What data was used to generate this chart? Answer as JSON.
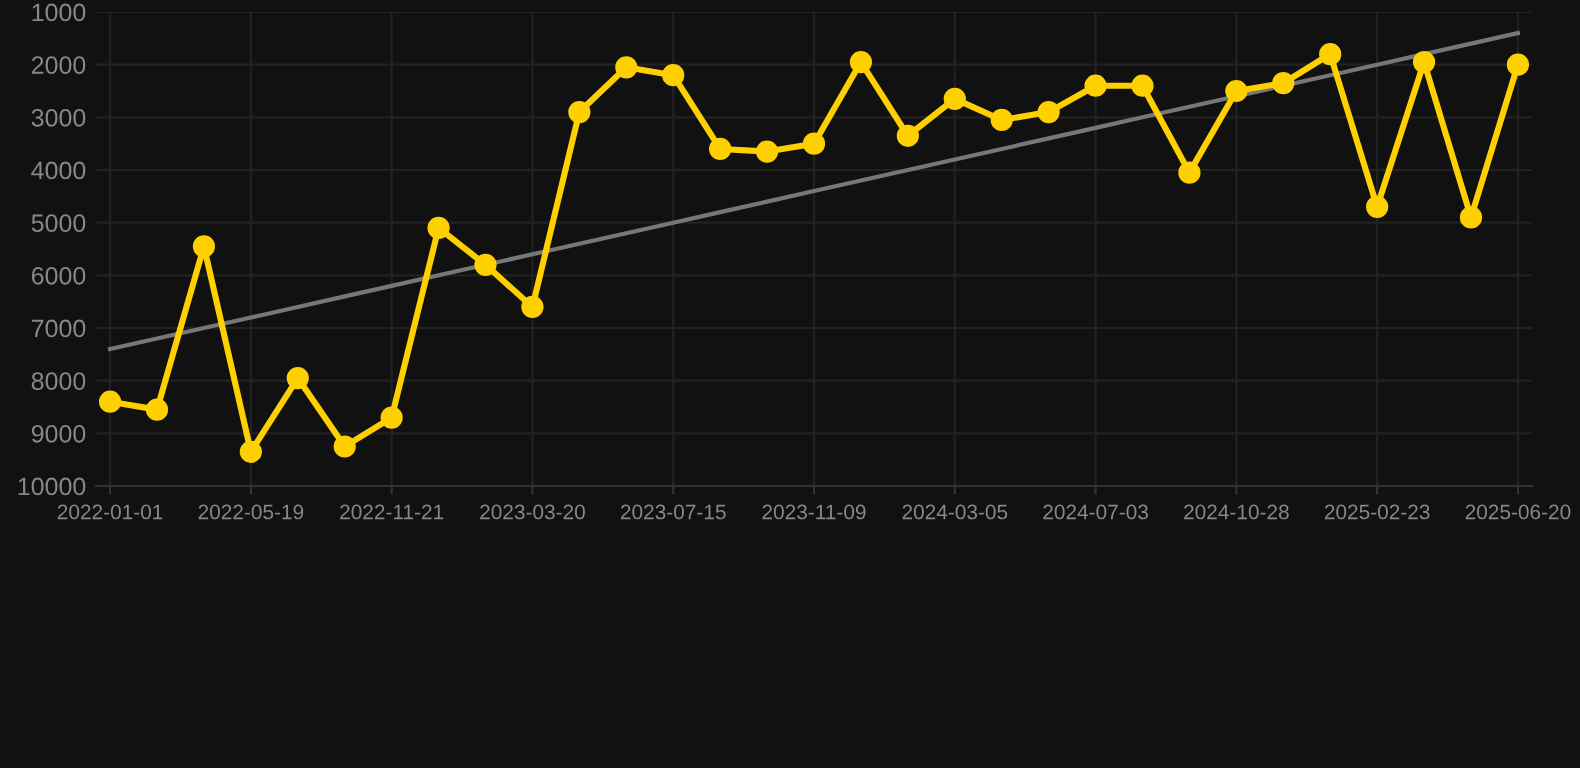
{
  "chart_data": {
    "type": "line",
    "categories": [
      "2022-01-01",
      null,
      null,
      "2022-05-19",
      null,
      null,
      "2022-11-21",
      null,
      null,
      "2023-03-20",
      null,
      null,
      "2023-07-15",
      null,
      null,
      "2023-11-09",
      null,
      null,
      "2024-03-05",
      null,
      null,
      "2024-07-03",
      null,
      null,
      "2024-10-28",
      null,
      null,
      "2025-02-23",
      null,
      null,
      "2025-06-20"
    ],
    "series": [
      {
        "color": "#ffd000",
        "marker": "circle",
        "values": [
          8400,
          8550,
          5450,
          9350,
          7950,
          9250,
          8700,
          5100,
          5800,
          6600,
          2900,
          2050,
          2200,
          3600,
          3650,
          3500,
          1950,
          3350,
          2650,
          3050,
          2900,
          2400,
          2400,
          4050,
          2500,
          2350,
          1800,
          4700,
          1950,
          4900,
          2000
        ]
      },
      {
        "color": "#777777",
        "marker": "none",
        "values": [
          7400,
          7200,
          7000,
          6800,
          6600,
          6400,
          6200,
          6000,
          5800,
          5600,
          5400,
          5200,
          5000,
          4800,
          4600,
          4400,
          4200,
          4000,
          3800,
          3600,
          3400,
          3200,
          3000,
          2800,
          2600,
          2400,
          2200,
          2000,
          1800,
          1600,
          1400
        ]
      }
    ],
    "ylim": [
      10000,
      1000
    ],
    "yticks": [
      1000,
      2000,
      3000,
      4000,
      5000,
      6000,
      7000,
      8000,
      9000,
      10000
    ],
    "grid": true,
    "line_style": "solid"
  }
}
